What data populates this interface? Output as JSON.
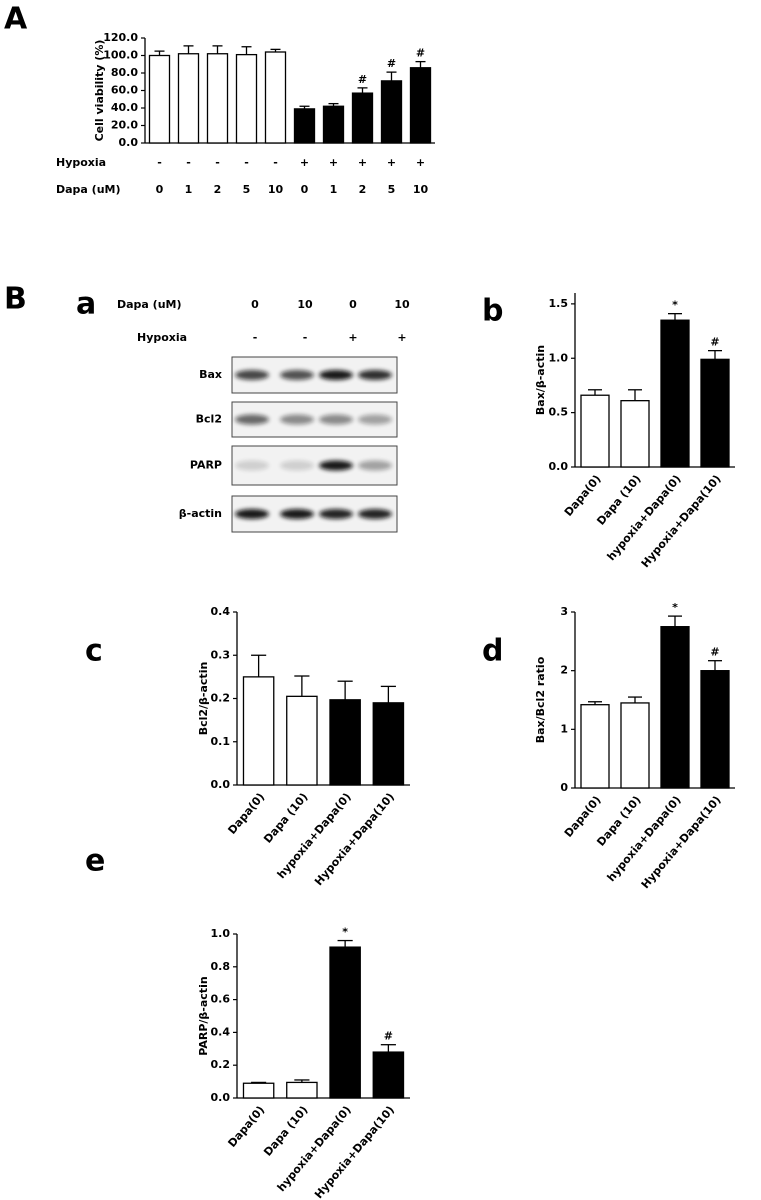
{
  "chart_data": [
    {
      "type": "bar",
      "panel_label": "A",
      "y_label": "Cell viability (%)",
      "row_labels": [
        "Hypoxia",
        "Dapa (uM)"
      ],
      "hypoxia": [
        "-",
        "-",
        "-",
        "-",
        "-",
        "+",
        "+",
        "+",
        "+",
        "+"
      ],
      "dapa": [
        "0",
        "1",
        "2",
        "5",
        "10",
        "0",
        "1",
        "2",
        "5",
        "10"
      ],
      "values": [
        100,
        102,
        102,
        101,
        104,
        39,
        42,
        57,
        71,
        86
      ],
      "errors": [
        5,
        9,
        9,
        9,
        3,
        3,
        3,
        6,
        10,
        7
      ],
      "annotations": [
        null,
        null,
        null,
        null,
        null,
        null,
        null,
        "#",
        "#",
        "#"
      ],
      "colors": [
        "#ffffff",
        "#ffffff",
        "#ffffff",
        "#ffffff",
        "#ffffff",
        "#000000",
        "#000000",
        "#000000",
        "#000000",
        "#000000"
      ],
      "ylim": [
        0,
        120
      ],
      "yticks": [
        {
          "value": 0,
          "label": "0.0"
        },
        {
          "value": 20,
          "label": "20.0"
        },
        {
          "value": 40,
          "label": "40.0"
        },
        {
          "value": 60,
          "label": "60.0"
        },
        {
          "value": 80,
          "label": "80.0"
        },
        {
          "value": 100,
          "label": "100.0"
        },
        {
          "value": 120,
          "label": "120.0"
        }
      ]
    },
    {
      "type": "bar",
      "panel_label": "b",
      "y_label": "Bax/β-actin",
      "categories": [
        "Dapa(0)",
        "Dapa (10)",
        "hypoxia+Dapa(0)",
        "Hypoxia+Dapa(10)"
      ],
      "values": [
        0.66,
        0.61,
        1.35,
        0.99
      ],
      "errors": [
        0.05,
        0.1,
        0.06,
        0.08
      ],
      "annotations": [
        null,
        null,
        "*",
        "#"
      ],
      "colors": [
        "#ffffff",
        "#ffffff",
        "#000000",
        "#000000"
      ],
      "ylim": [
        0,
        1.6
      ],
      "yticks": [
        {
          "value": 0,
          "label": "0.0"
        },
        0.5,
        {
          "value": 1,
          "label": "1.0"
        },
        1.5
      ]
    },
    {
      "type": "bar",
      "panel_label": "c",
      "y_label": "Bcl2/β-actin",
      "categories": [
        "Dapa(0)",
        "Dapa (10)",
        "hypoxia+Dapa(0)",
        "Hypoxia+Dapa(10)"
      ],
      "values": [
        0.25,
        0.205,
        0.197,
        0.19
      ],
      "errors": [
        0.05,
        0.047,
        0.043,
        0.038
      ],
      "colors": [
        "#ffffff",
        "#ffffff",
        "#000000",
        "#000000"
      ],
      "ylim": [
        0,
        0.4
      ],
      "yticks": [
        {
          "value": 0,
          "label": "0.0"
        },
        0.1,
        0.2,
        0.3,
        0.4
      ]
    },
    {
      "type": "bar",
      "panel_label": "d",
      "y_label": "Bax/Bcl2 ratio",
      "categories": [
        "Dapa(0)",
        "Dapa (10)",
        "hypoxia+Dapa(0)",
        "Hypoxia+Dapa(10)"
      ],
      "values": [
        1.42,
        1.45,
        2.75,
        2.0
      ],
      "errors": [
        0.05,
        0.1,
        0.18,
        0.17
      ],
      "annotations": [
        null,
        null,
        "*",
        "#"
      ],
      "colors": [
        "#ffffff",
        "#ffffff",
        "#000000",
        "#000000"
      ],
      "ylim": [
        0,
        3
      ],
      "yticks": [
        0,
        1,
        2,
        3
      ]
    },
    {
      "type": "bar",
      "panel_label": "e",
      "y_label": "PARP/β-actin",
      "categories": [
        "Dapa(0)",
        "Dapa (10)",
        "hypoxia+Dapa(0)",
        "Hypoxia+Dapa(10)"
      ],
      "values": [
        0.09,
        0.095,
        0.92,
        0.28
      ],
      "errors": [
        0.005,
        0.015,
        0.04,
        0.045
      ],
      "annotations": [
        null,
        null,
        "*",
        "#"
      ],
      "colors": [
        "#ffffff",
        "#ffffff",
        "#000000",
        "#000000"
      ],
      "ylim": [
        0,
        1
      ],
      "yticks": [
        {
          "value": 0,
          "label": "0.0"
        },
        0.2,
        0.4,
        0.6,
        0.8,
        {
          "value": 1,
          "label": "1.0"
        }
      ]
    }
  ],
  "blot": {
    "section_label": "B",
    "panel_label": "a",
    "header_labels": [
      "Dapa (uM)",
      "Hypoxia"
    ],
    "dapa": [
      "0",
      "10",
      "0",
      "10"
    ],
    "hypoxia": [
      "-",
      "-",
      "+",
      "+"
    ],
    "proteins": [
      "Bax",
      "Bcl2",
      "PARP",
      "β-actin"
    ]
  }
}
